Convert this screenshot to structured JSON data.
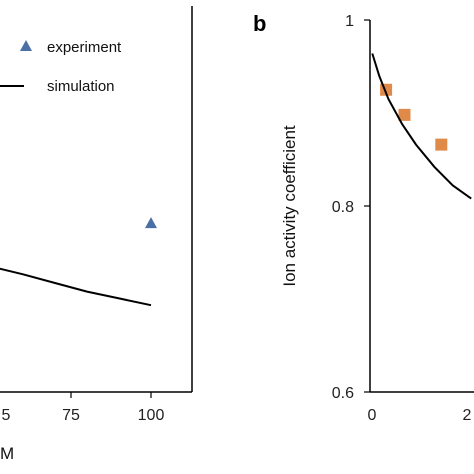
{
  "chart_data": [
    {
      "panel": "",
      "type": "scatter",
      "xlim": [
        50,
        110
      ],
      "ylim": [
        0.6,
        1.0
      ],
      "x_ticks": [
        "75",
        "100"
      ],
      "xlabel_partial": "M",
      "legend": {
        "placement": "top-right",
        "entries": [
          "experiment",
          "simulation"
        ]
      },
      "series": [
        {
          "name": "experiment",
          "marker": "triangle",
          "color": "#4a6fa5",
          "points": [
            {
              "x": 100,
              "y": 0.775
            }
          ]
        },
        {
          "name": "simulation",
          "style": "line",
          "color": "#000000",
          "points": [
            {
              "x": 50,
              "y": 0.73
            },
            {
              "x": 60,
              "y": 0.722
            },
            {
              "x": 70,
              "y": 0.713
            },
            {
              "x": 80,
              "y": 0.704
            },
            {
              "x": 90,
              "y": 0.697
            },
            {
              "x": 100,
              "y": 0.69
            }
          ]
        }
      ]
    },
    {
      "panel": "b",
      "type": "scatter",
      "ylabel": "Ion activity coefficient",
      "xlim": [
        0,
        40
      ],
      "ylim": [
        0.6,
        1.0
      ],
      "y_ticks": [
        "0.6",
        "0.8",
        "1"
      ],
      "x_ticks": [
        "0",
        "2"
      ],
      "series": [
        {
          "name": "",
          "marker": "square",
          "color": "#e08a4a",
          "points": [
            {
              "x": 3.5,
              "y": 0.925
            },
            {
              "x": 7.5,
              "y": 0.898
            },
            {
              "x": 15.5,
              "y": 0.866
            }
          ]
        },
        {
          "name": "",
          "style": "line",
          "color": "#000000",
          "points": [
            {
              "x": 0.5,
              "y": 0.964
            },
            {
              "x": 2,
              "y": 0.94
            },
            {
              "x": 4,
              "y": 0.915
            },
            {
              "x": 7,
              "y": 0.888
            },
            {
              "x": 10,
              "y": 0.866
            },
            {
              "x": 14,
              "y": 0.842
            },
            {
              "x": 18,
              "y": 0.822
            },
            {
              "x": 22,
              "y": 0.808
            }
          ]
        }
      ]
    }
  ]
}
